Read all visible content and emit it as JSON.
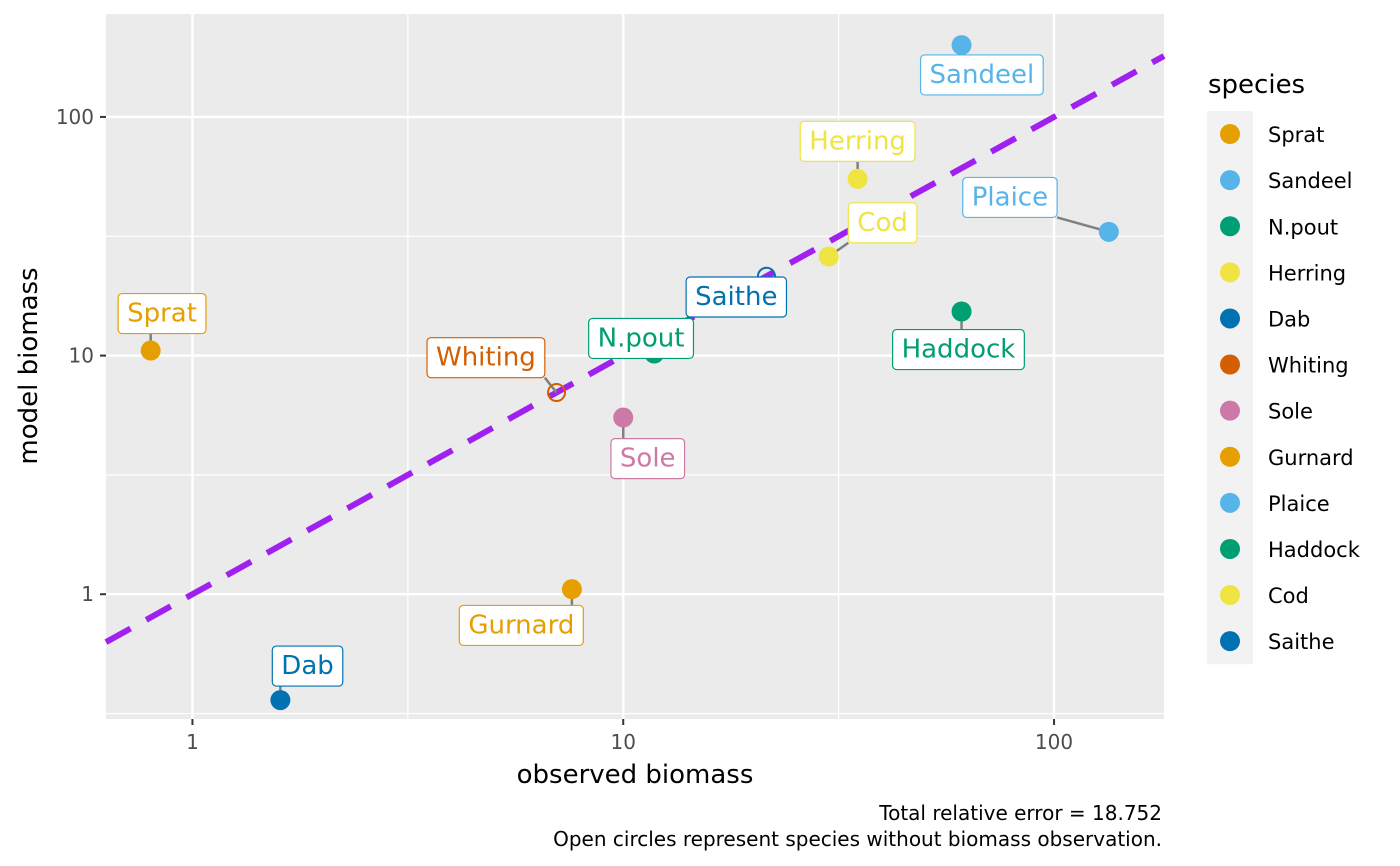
{
  "chart_data": {
    "type": "scatter",
    "xlabel": "observed biomass",
    "ylabel": "model biomass",
    "x_scale": "log10",
    "y_scale": "log10",
    "xlim": [
      0.63,
      180
    ],
    "ylim": [
      0.3,
      270
    ],
    "x_ticks": [
      {
        "value": 1,
        "label": "1"
      },
      {
        "value": 10,
        "label": "10"
      },
      {
        "value": 100,
        "label": "100"
      }
    ],
    "y_ticks": [
      {
        "value": 1,
        "label": "1"
      },
      {
        "value": 10,
        "label": "10"
      },
      {
        "value": 100,
        "label": "100"
      }
    ],
    "grid": true,
    "reference_line": {
      "slope": 1,
      "style": "dashed",
      "color": "#a020f0"
    },
    "legend": {
      "title": "species",
      "position": "right",
      "entries": [
        {
          "name": "Sprat",
          "color": "#e69f00"
        },
        {
          "name": "Sandeel",
          "color": "#56b4e9"
        },
        {
          "name": "N.pout",
          "color": "#009e73"
        },
        {
          "name": "Herring",
          "color": "#f0e442"
        },
        {
          "name": "Dab",
          "color": "#0072b2"
        },
        {
          "name": "Whiting",
          "color": "#d55e00"
        },
        {
          "name": "Sole",
          "color": "#cc79a7"
        },
        {
          "name": "Gurnard",
          "color": "#e69f00"
        },
        {
          "name": "Plaice",
          "color": "#56b4e9"
        },
        {
          "name": "Haddock",
          "color": "#009e73"
        },
        {
          "name": "Cod",
          "color": "#f0e442"
        },
        {
          "name": "Saithe",
          "color": "#0072b2"
        }
      ]
    },
    "points": [
      {
        "species": "Sprat",
        "x": 0.8,
        "y": 10.5,
        "color": "#e69f00",
        "open": false,
        "label_pos": [
          0.85,
          15
        ]
      },
      {
        "species": "Sandeel",
        "x": 61,
        "y": 200,
        "color": "#56b4e9",
        "open": false,
        "label_pos": [
          68,
          150
        ]
      },
      {
        "species": "N.pout",
        "x": 11.8,
        "y": 10.2,
        "color": "#009e73",
        "open": false,
        "label_pos": [
          11,
          11.8
        ]
      },
      {
        "species": "Herring",
        "x": 35,
        "y": 55,
        "color": "#f0e442",
        "open": false,
        "label_pos": [
          35,
          79
        ]
      },
      {
        "species": "Dab",
        "x": 1.6,
        "y": 0.36,
        "color": "#0072b2",
        "open": false,
        "label_pos": [
          1.85,
          0.5
        ]
      },
      {
        "species": "Whiting",
        "x": 7,
        "y": 7,
        "color": "#d55e00",
        "open": true,
        "label_pos": [
          4.8,
          9.8
        ]
      },
      {
        "species": "Sole",
        "x": 10,
        "y": 5.5,
        "color": "#cc79a7",
        "open": false,
        "label_pos": [
          11.4,
          3.7
        ]
      },
      {
        "species": "Gurnard",
        "x": 7.6,
        "y": 1.05,
        "color": "#e69f00",
        "open": false,
        "label_pos": [
          5.8,
          0.74
        ]
      },
      {
        "species": "Plaice",
        "x": 134,
        "y": 33,
        "color": "#56b4e9",
        "open": false,
        "label_pos": [
          79,
          46
        ]
      },
      {
        "species": "Haddock",
        "x": 61,
        "y": 15.3,
        "color": "#009e73",
        "open": false,
        "label_pos": [
          60,
          10.6
        ]
      },
      {
        "species": "Cod",
        "x": 30,
        "y": 26,
        "color": "#f0e442",
        "open": false,
        "label_pos": [
          40,
          36
        ]
      },
      {
        "species": "Saithe",
        "x": 21.5,
        "y": 21.5,
        "color": "#0072b2",
        "open": true,
        "label_pos": [
          18.3,
          17.6
        ]
      }
    ],
    "caption": [
      "Total relative error = 18.752",
      "Open circles represent species without biomass observation."
    ]
  }
}
